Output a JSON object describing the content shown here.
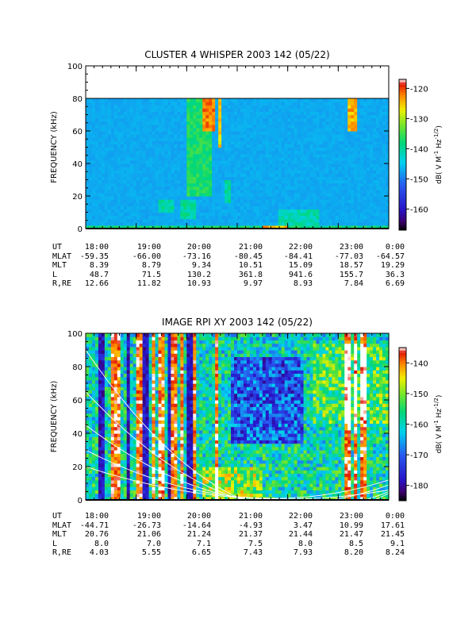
{
  "chart_data": [
    {
      "type": "heatmap",
      "title": "CLUSTER 4 WHISPER 2003 142 (05/22)",
      "ylabel": "FREQUENCY (kHz)",
      "ylim": [
        0,
        100
      ],
      "y_ticks": [
        "0",
        "20",
        "40",
        "60",
        "80",
        "100"
      ],
      "data_ceiling_khz": 80,
      "x_range_ut_hours": [
        18,
        24
      ],
      "colorbar": {
        "label": "dB( V M",
        "label_exp1": "-1",
        "label_mid": " Hz",
        "label_exp2": "-1/2",
        "label_end": ")",
        "range": [
          -167,
          -117
        ],
        "ticks": [
          "-120",
          "-130",
          "-140",
          "-150",
          "-160"
        ],
        "tick_values": [
          -120,
          -130,
          -140,
          -150,
          -160
        ]
      },
      "background_db": -147,
      "features": [
        {
          "ut": [
            18.0,
            24.0
          ],
          "freq": [
            0,
            2
          ],
          "db": -138
        },
        {
          "ut": [
            19.45,
            19.75
          ],
          "freq": [
            10,
            18
          ],
          "db": -140
        },
        {
          "ut": [
            19.85,
            20.2
          ],
          "freq": [
            6,
            18
          ],
          "db": -140
        },
        {
          "ut": [
            20.0,
            20.5
          ],
          "freq": [
            20,
            80
          ],
          "db": -137
        },
        {
          "ut": [
            20.3,
            20.55
          ],
          "freq": [
            60,
            80
          ],
          "db": -122
        },
        {
          "ut": [
            20.6,
            20.7
          ],
          "freq": [
            50,
            80
          ],
          "db": -126
        },
        {
          "ut": [
            20.75,
            20.9
          ],
          "freq": [
            16,
            30
          ],
          "db": -140
        },
        {
          "ut": [
            21.5,
            22.0
          ],
          "freq": [
            0,
            2
          ],
          "db": -124
        },
        {
          "ut": [
            21.8,
            22.6
          ],
          "freq": [
            2,
            12
          ],
          "db": -141
        },
        {
          "ut": [
            23.2,
            23.4
          ],
          "freq": [
            60,
            80
          ],
          "db": -124
        }
      ],
      "ephemeris": {
        "labels": [
          "UT",
          "MLAT",
          "MLT",
          "L",
          "R,RE"
        ],
        "columns": [
          [
            "18:00",
            "-59.35",
            "8.39",
            "48.7",
            "12.66"
          ],
          [
            "19:00",
            "-66.00",
            "8.79",
            "71.5",
            "11.82"
          ],
          [
            "20:00",
            "-73.16",
            "9.34",
            "130.2",
            "10.93"
          ],
          [
            "21:00",
            "-80.45",
            "10.51",
            "361.8",
            "9.97"
          ],
          [
            "22:00",
            "-84.41",
            "15.09",
            "941.6",
            "8.93"
          ],
          [
            "23:00",
            "-77.03",
            "18.57",
            "155.7",
            "7.84"
          ],
          [
            "0:00",
            "-64.57",
            "19.29",
            "36.3",
            "6.69"
          ]
        ]
      }
    },
    {
      "type": "heatmap",
      "title": "IMAGE RPI XY 2003 142 (05/22)",
      "ylabel": "FREQUENCY (kHz)",
      "ylim": [
        0,
        100
      ],
      "y_ticks": [
        "0",
        "20",
        "40",
        "60",
        "80",
        "100"
      ],
      "data_ceiling_khz": 100,
      "x_range_ut_hours": [
        18,
        24
      ],
      "colorbar": {
        "label": "dB( V M",
        "label_exp1": "-1",
        "label_mid": " Hz",
        "label_exp2": "-1/2",
        "label_end": ")",
        "range": [
          -185,
          -135
        ],
        "ticks": [
          "-140",
          "-150",
          "-160",
          "-170",
          "-180"
        ],
        "tick_values": [
          -140,
          -150,
          -160,
          -170,
          -180
        ]
      },
      "background_db": -158,
      "hot_columns_ut": [
        18.55,
        18.65,
        19.05,
        19.35,
        19.5,
        19.75,
        19.9,
        20.15,
        20.6,
        23.2,
        23.35,
        23.5
      ],
      "dark_columns_ut": [
        18.3,
        18.85,
        19.2,
        19.65,
        20.05
      ],
      "depletion_region": {
        "ut": [
          20.9,
          22.3
        ],
        "freq": [
          35,
          85
        ]
      },
      "curves_khz_at_ut": [
        {
          "ut": [
            18.0,
            20.5,
            24.0
          ],
          "freq": [
            90,
            10,
            4
          ]
        },
        {
          "ut": [
            18.0,
            20.5,
            24.0
          ],
          "freq": [
            65,
            7,
            5
          ]
        },
        {
          "ut": [
            18.0,
            20.5,
            24.0
          ],
          "freq": [
            45,
            5,
            9
          ]
        },
        {
          "ut": [
            18.0,
            20.5,
            24.0
          ],
          "freq": [
            30,
            4,
            12
          ]
        },
        {
          "ut": [
            18.0,
            20.5,
            24.0
          ],
          "freq": [
            20,
            3,
            6
          ]
        }
      ],
      "ephemeris": {
        "labels": [
          "UT",
          "MLAT",
          "MLT",
          "L",
          "R,RE"
        ],
        "columns": [
          [
            "18:00",
            "-44.71",
            "20.76",
            "8.0",
            "4.03"
          ],
          [
            "19:00",
            "-26.73",
            "21.06",
            "7.0",
            "5.55"
          ],
          [
            "20:00",
            "-14.64",
            "21.24",
            "7.1",
            "6.65"
          ],
          [
            "21:00",
            "-4.93",
            "21.37",
            "7.5",
            "7.43"
          ],
          [
            "22:00",
            "3.47",
            "21.44",
            "8.0",
            "7.93"
          ],
          [
            "23:00",
            "10.99",
            "21.47",
            "8.5",
            "8.20"
          ],
          [
            "0:00",
            "17.61",
            "21.45",
            "9.1",
            "8.24"
          ]
        ]
      }
    }
  ]
}
